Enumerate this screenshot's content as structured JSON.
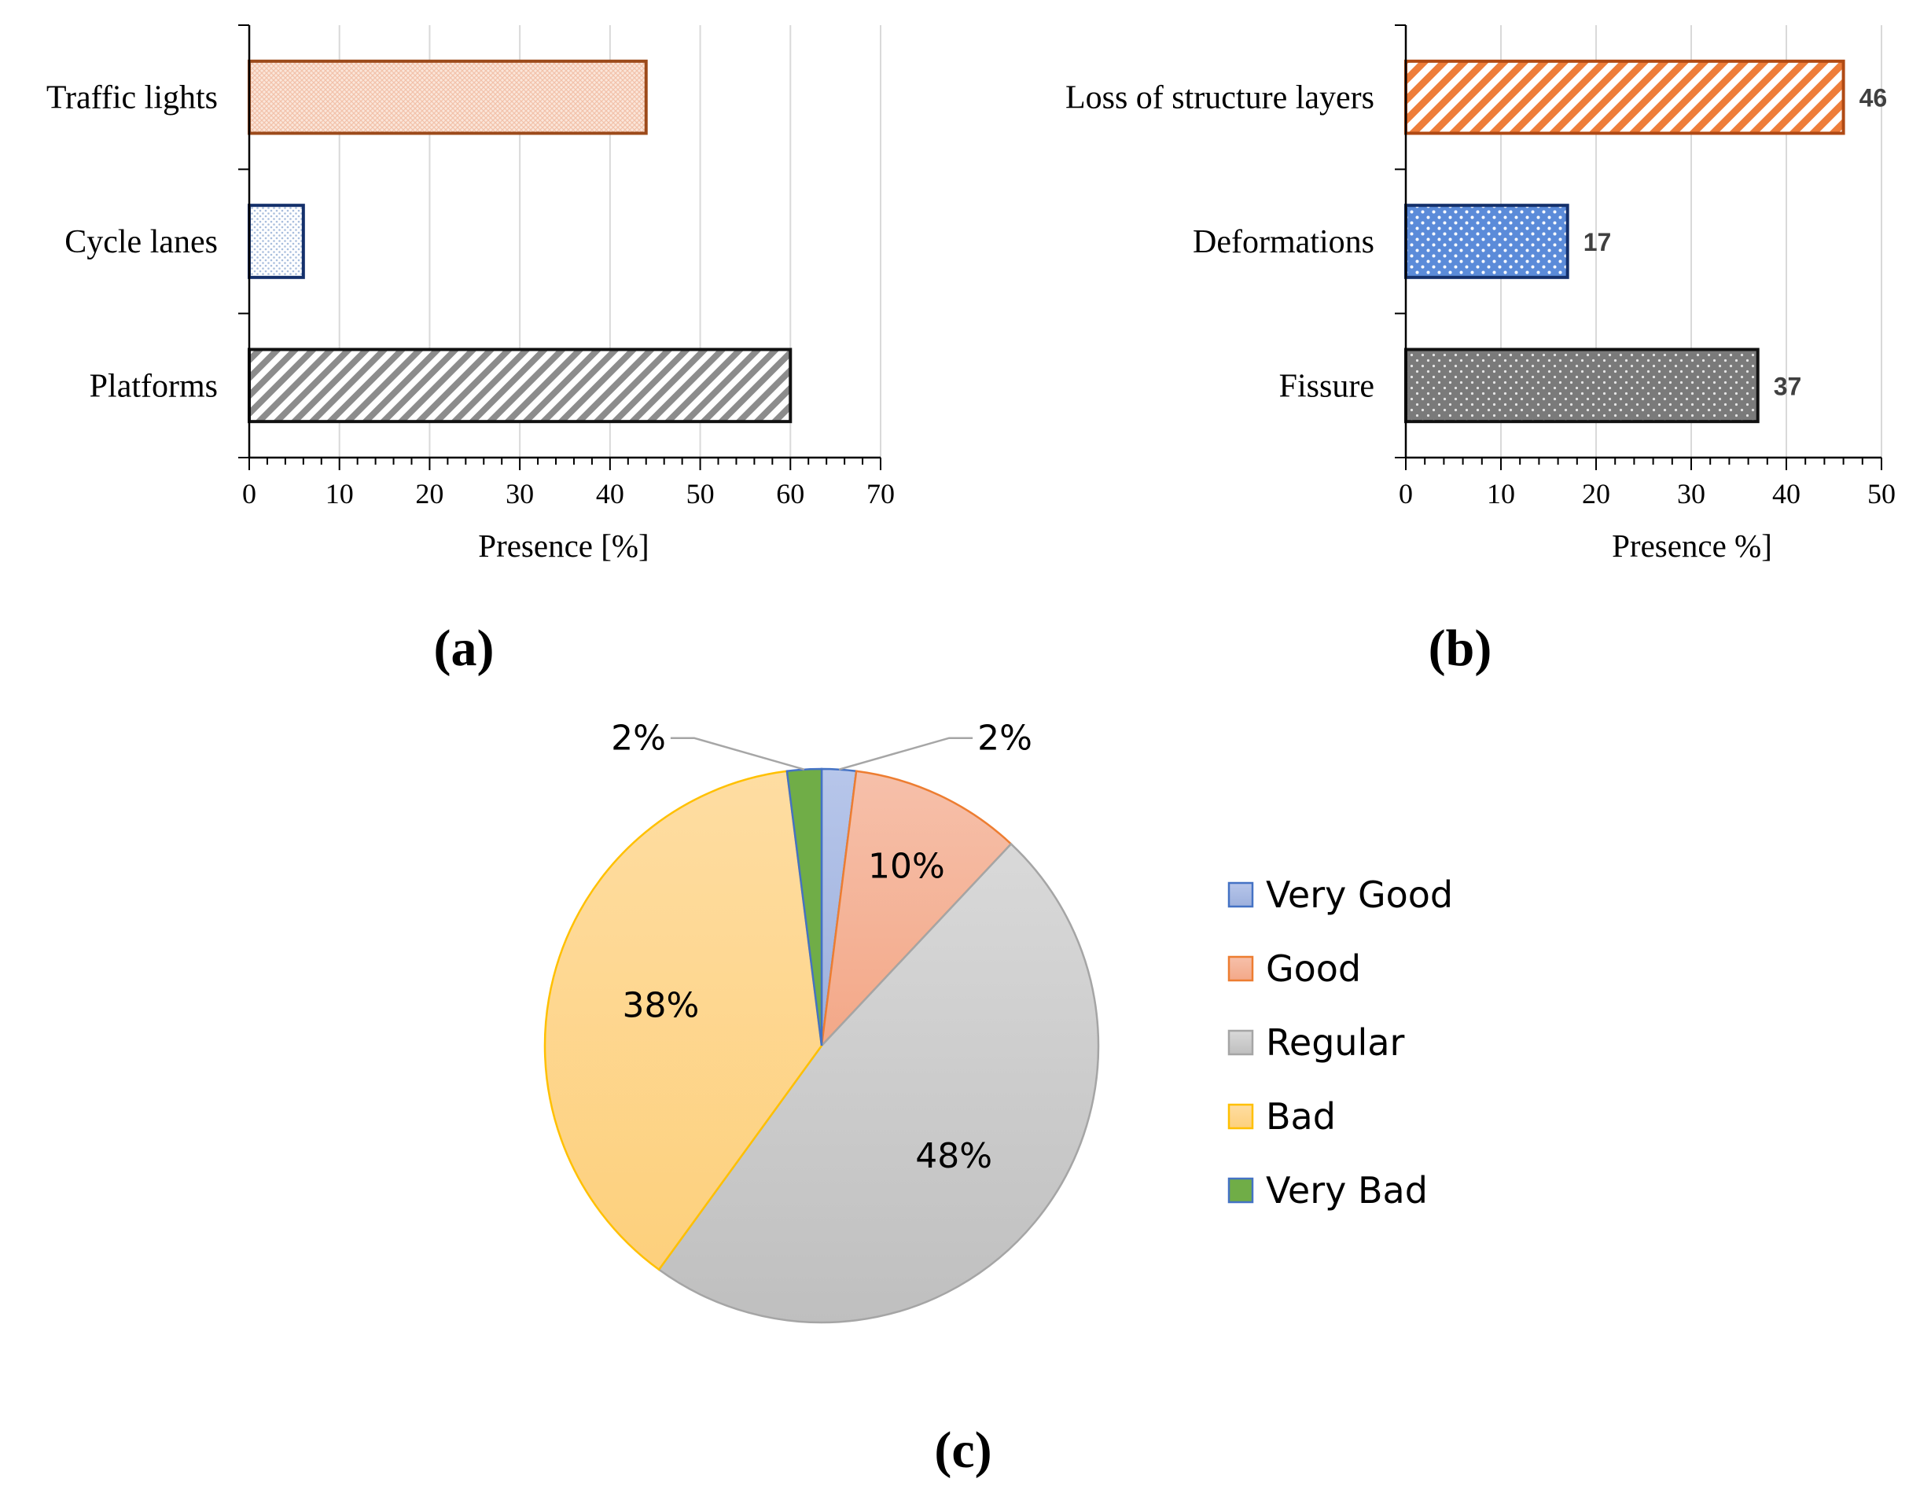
{
  "panels": {
    "a": {
      "label": "(a)"
    },
    "b": {
      "label": "(b)"
    },
    "c": {
      "label": "(c)"
    }
  },
  "chart_data": [
    {
      "id": "a",
      "type": "bar",
      "orientation": "horizontal",
      "categories": [
        "Traffic lights",
        "Cycle lanes",
        "Platforms"
      ],
      "values": [
        44,
        6,
        60
      ],
      "title": "",
      "xlabel": "Presence [%]",
      "ylabel": "",
      "xlim": [
        0,
        70
      ],
      "x_ticks": [
        0,
        10,
        20,
        30,
        40,
        50,
        60,
        70
      ],
      "grid": "vertical",
      "data_labels": false,
      "colors": {
        "Traffic lights": {
          "stroke": "#9C4A1A",
          "fill": "#F7D2C0",
          "pattern": "crosshatch-light"
        },
        "Cycle lanes": {
          "stroke": "#14306B",
          "fill": "#BFD0E6",
          "pattern": "dots-light"
        },
        "Platforms": {
          "stroke": "#111111",
          "fill": "#8C8C8C",
          "pattern": "diagonal-stripes"
        }
      }
    },
    {
      "id": "b",
      "type": "bar",
      "orientation": "horizontal",
      "categories": [
        "Loss of structure layers",
        "Deformations",
        "Fissure"
      ],
      "values": [
        46,
        17,
        37
      ],
      "title": "",
      "xlabel": "Presence %]",
      "ylabel": "",
      "xlim": [
        0,
        50
      ],
      "x_ticks": [
        0,
        10,
        20,
        30,
        40,
        50
      ],
      "grid": "vertical",
      "data_labels": true,
      "colors": {
        "Loss of structure layers": {
          "stroke": "#B04A14",
          "fill": "#EE7D3A",
          "pattern": "diagonal-stripes"
        },
        "Deformations": {
          "stroke": "#14306B",
          "fill": "#5B8BD9",
          "pattern": "dots"
        },
        "Fissure": {
          "stroke": "#111111",
          "fill": "#7A7A7A",
          "pattern": "dots"
        }
      }
    },
    {
      "id": "c",
      "type": "pie",
      "title": "",
      "slices": [
        {
          "label": "Very Good",
          "value": 2,
          "display": "2%",
          "fill": "#A9B9E0",
          "stroke": "#4472C4"
        },
        {
          "label": "Good",
          "value": 10,
          "display": "10%",
          "fill": "#F4B29A",
          "stroke": "#ED7D31"
        },
        {
          "label": "Regular",
          "value": 48,
          "display": "48%",
          "fill": "#C9C9C9",
          "stroke": "#A5A5A5"
        },
        {
          "label": "Bad",
          "value": 38,
          "display": "38%",
          "fill": "#FDD68E",
          "stroke": "#FFC000"
        },
        {
          "label": "Very Bad",
          "value": 2,
          "display": "2%",
          "fill": "#70AD47",
          "stroke": "#4472C4"
        }
      ],
      "legend": "right"
    }
  ]
}
